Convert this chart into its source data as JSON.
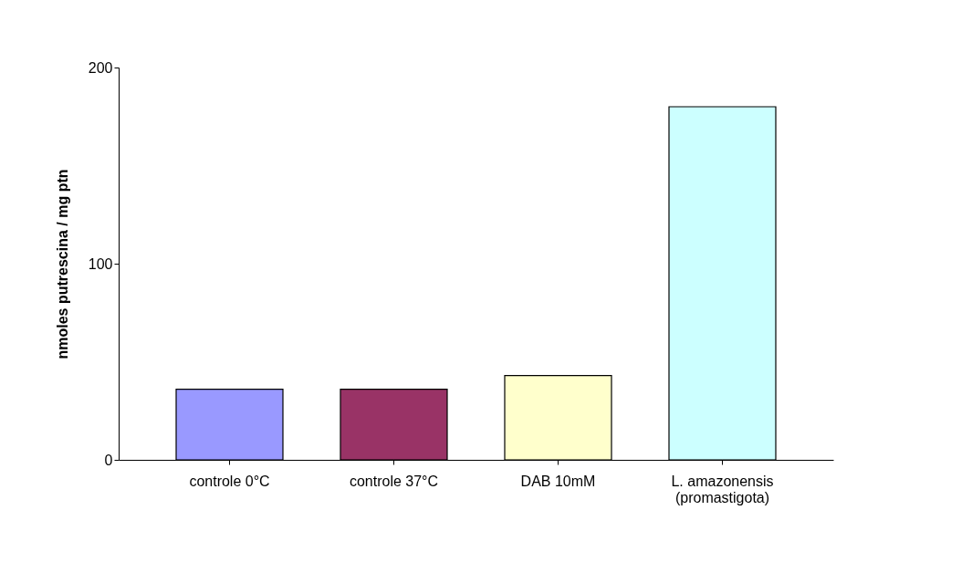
{
  "chart_data": {
    "type": "bar",
    "ylabel": "nmoles putrescina / mg ptn",
    "categories": [
      "controle 0°C",
      "controle 37°C",
      "DAB 10mM",
      "L. amazonensis\n(promastigota)"
    ],
    "values": [
      36,
      36,
      43,
      180
    ],
    "colors": [
      "#9999ff",
      "#993366",
      "#ffffcc",
      "#ccffff"
    ],
    "ylim": [
      0,
      200
    ],
    "yticks": [
      0,
      100,
      200
    ],
    "grid": false,
    "legend": false
  }
}
